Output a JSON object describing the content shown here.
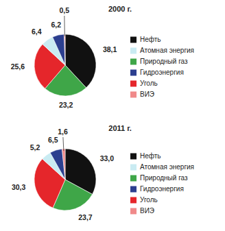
{
  "chart_data": [
    {
      "type": "pie",
      "title": "2000 г.",
      "categories": [
        "Нефть",
        "Атомная энергия",
        "Природный газ",
        "Гидроэнергия",
        "Уголь",
        "ВИЭ"
      ],
      "values": [
        38.1,
        6.4,
        23.2,
        6.2,
        25.6,
        0.5
      ],
      "value_labels": [
        "38,1",
        "6,4",
        "23,2",
        "6,2",
        "25,6",
        "0,5"
      ],
      "colors": [
        "#111111",
        "#c9ebf2",
        "#3fa648",
        "#2c3f8f",
        "#e5262b",
        "#f08a8a"
      ],
      "data_labels": true,
      "legend": "right"
    },
    {
      "type": "pie",
      "title": "2011 г.",
      "categories": [
        "Нефть",
        "Атомная энергия",
        "Природный газ",
        "Гидроэнергия",
        "Уголь",
        "ВИЭ"
      ],
      "values": [
        33.0,
        5.2,
        23.7,
        6.5,
        30.3,
        1.6
      ],
      "value_labels": [
        "33,0",
        "5,2",
        "23,7",
        "6,5",
        "30,3",
        "1,6"
      ],
      "colors": [
        "#111111",
        "#c9ebf2",
        "#3fa648",
        "#2c3f8f",
        "#e5262b",
        "#f08a8a"
      ],
      "data_labels": true,
      "legend": "right"
    }
  ]
}
